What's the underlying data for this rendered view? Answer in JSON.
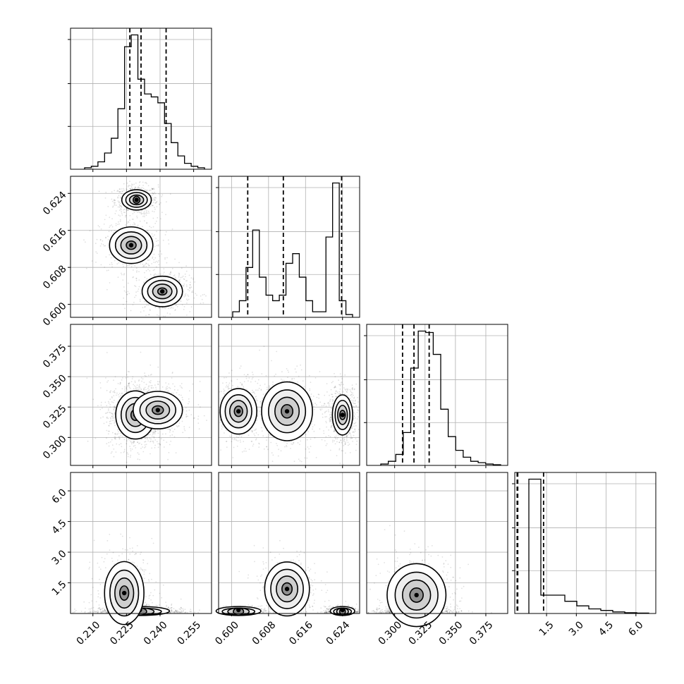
{
  "chart_data": {
    "type": "corner",
    "grid": true,
    "parameters": 4,
    "quantile_style": "dashed",
    "panels": [
      {
        "kind": "hist",
        "row": 0,
        "col": 0,
        "xlim": [
          0.2,
          0.263
        ],
        "bin_counts": [
          0.01,
          0.02,
          0.05,
          0.11,
          0.21,
          0.41,
          0.83,
          0.91,
          0.61,
          0.51,
          0.49,
          0.45,
          0.31,
          0.18,
          0.09,
          0.04,
          0.02,
          0.01
        ],
        "quantiles": [
          0.2265,
          0.2315,
          0.2427
        ],
        "x_ticks": [
          "0.210",
          "0.225",
          "0.240",
          "0.255"
        ]
      },
      {
        "kind": "hist",
        "row": 1,
        "col": 1,
        "xlim": [
          0.5972,
          0.6277
        ],
        "bin_counts": [
          0.04,
          0.12,
          0.36,
          0.63,
          0.29,
          0.16,
          0.12,
          0.16,
          0.39,
          0.46,
          0.29,
          0.12,
          0.04,
          0.04,
          0.58,
          0.97,
          0.12,
          0.02
        ],
        "quantiles": [
          0.6035,
          0.6112,
          0.6238
        ],
        "x_ticks": [
          "0.600",
          "0.608",
          "0.616",
          "0.624"
        ]
      },
      {
        "kind": "hist",
        "row": 2,
        "col": 2,
        "xlim": [
          0.277,
          0.393
        ],
        "bin_counts": [
          0.01,
          0.03,
          0.08,
          0.24,
          0.71,
          0.98,
          0.97,
          0.81,
          0.41,
          0.21,
          0.11,
          0.06,
          0.03,
          0.02,
          0.01,
          0.005
        ],
        "quantiles": [
          0.3065,
          0.3159,
          0.3284
        ],
        "x_ticks": [
          "0.300",
          "0.325",
          "0.350",
          "0.375"
        ]
      },
      {
        "kind": "hist",
        "row": 3,
        "col": 3,
        "xlim": [
          -0.1,
          7.0
        ],
        "bin_counts": [
          0.88,
          0.12,
          0.12,
          0.08,
          0.05,
          0.03,
          0.02,
          0.01,
          0.005,
          0.003
        ],
        "quantiles": [
          0.02,
          0.05,
          1.35
        ],
        "x_ticks": [
          "1.5",
          "3.0",
          "4.5",
          "6.0"
        ]
      },
      {
        "kind": "2d",
        "row": 1,
        "col": 0,
        "xlim": [
          0.2,
          0.263
        ],
        "ylim": [
          0.5972,
          0.6277
        ],
        "blobs": [
          {
            "cx": 0.2295,
            "cy": 0.6226,
            "sx": 0.003,
            "sy": 0.001,
            "w": 1.0
          },
          {
            "cx": 0.2271,
            "cy": 0.6128,
            "sx": 0.0044,
            "sy": 0.0018,
            "w": 0.65
          },
          {
            "cx": 0.241,
            "cy": 0.6028,
            "sx": 0.0041,
            "sy": 0.0015,
            "w": 0.8
          }
        ],
        "y_ticks": [
          "0.600",
          "0.608",
          "0.616",
          "0.624"
        ]
      },
      {
        "kind": "2d",
        "row": 2,
        "col": 0,
        "xlim": [
          0.2,
          0.263
        ],
        "ylim": [
          0.277,
          0.393
        ],
        "blobs": [
          {
            "cx": 0.229,
            "cy": 0.3185,
            "sx": 0.004,
            "sy": 0.009,
            "w": 1.0
          },
          {
            "cx": 0.239,
            "cy": 0.3225,
            "sx": 0.005,
            "sy": 0.007,
            "w": 0.5
          }
        ],
        "y_ticks": [
          "0.300",
          "0.325",
          "0.350",
          "0.375"
        ]
      },
      {
        "kind": "2d",
        "row": 2,
        "col": 1,
        "xlim": [
          0.5972,
          0.6277
        ],
        "ylim": [
          0.277,
          0.393
        ],
        "blobs": [
          {
            "cx": 0.6015,
            "cy": 0.3215,
            "sx": 0.0018,
            "sy": 0.0085,
            "w": 0.8
          },
          {
            "cx": 0.612,
            "cy": 0.3215,
            "sx": 0.0025,
            "sy": 0.011,
            "w": 0.65
          },
          {
            "cx": 0.624,
            "cy": 0.3185,
            "sx": 0.001,
            "sy": 0.0075,
            "w": 1.0
          }
        ]
      },
      {
        "kind": "2d",
        "row": 3,
        "col": 0,
        "xlim": [
          0.2,
          0.263
        ],
        "ylim": [
          0.0,
          6.9
        ],
        "blobs": [
          {
            "cx": 0.231,
            "cy": 0.02,
            "sx": 0.006,
            "sy": 0.1,
            "w": 1.0
          },
          {
            "cx": 0.224,
            "cy": 1.0,
            "sx": 0.004,
            "sy": 0.7,
            "w": 0.35
          }
        ],
        "y_ticks": [
          "1.5",
          "3.0",
          "4.5",
          "6.0"
        ]
      },
      {
        "kind": "2d",
        "row": 3,
        "col": 1,
        "xlim": [
          0.5972,
          0.6277
        ],
        "ylim": [
          0.0,
          6.9
        ],
        "blobs": [
          {
            "cx": 0.6015,
            "cy": 0.02,
            "sx": 0.0022,
            "sy": 0.1,
            "w": 0.8
          },
          {
            "cx": 0.624,
            "cy": 0.02,
            "sx": 0.0012,
            "sy": 0.1,
            "w": 1.0
          },
          {
            "cx": 0.612,
            "cy": 1.2,
            "sx": 0.0022,
            "sy": 0.6,
            "w": 0.35
          }
        ]
      },
      {
        "kind": "2d",
        "row": 3,
        "col": 2,
        "xlim": [
          0.277,
          0.393
        ],
        "ylim": [
          0.0,
          6.9
        ],
        "blobs": [
          {
            "cx": 0.318,
            "cy": 0.02,
            "sx": 0.009,
            "sy": 0.1,
            "w": 1.0
          },
          {
            "cx": 0.318,
            "cy": 0.9,
            "sx": 0.011,
            "sy": 0.7,
            "w": 0.35
          }
        ]
      }
    ]
  }
}
